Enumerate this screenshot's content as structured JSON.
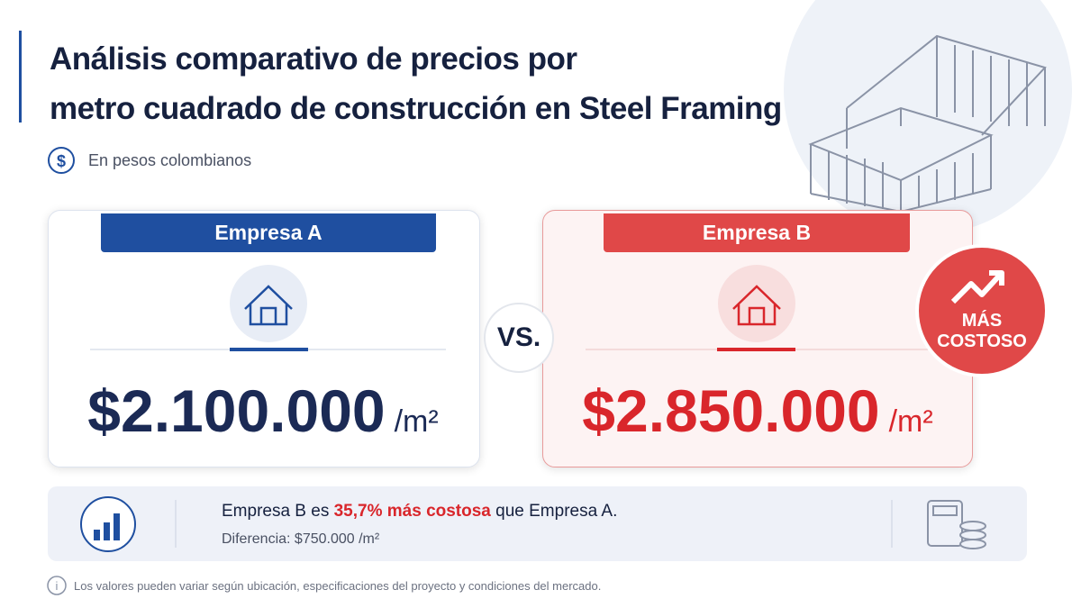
{
  "header": {
    "title_lines": [
      "Análisis comparativo de precios por",
      "metro cuadrado de construcción en Steel Framing"
    ],
    "subtitle_icon": "$",
    "subtitle": "En pesos colombianos"
  },
  "cards": [
    {
      "label": "Empresa A",
      "price": "$2.100.000",
      "unit": "/m²"
    },
    {
      "label": "Empresa B",
      "price": "$2.850.000",
      "unit": "/m²"
    }
  ],
  "versus": "VS.",
  "badge": {
    "lines": [
      "MÁS",
      "COSTOSO"
    ]
  },
  "summary": {
    "parts": [
      "Empresa B es",
      "35,7% más costosa",
      "que Empresa A."
    ],
    "difference": "Diferencia: $750.000 /m²"
  },
  "footnote": {
    "icon": "i",
    "text": "Los valores pueden variar según ubicación, especificaciones del proyecto y condiciones del mercado."
  }
}
